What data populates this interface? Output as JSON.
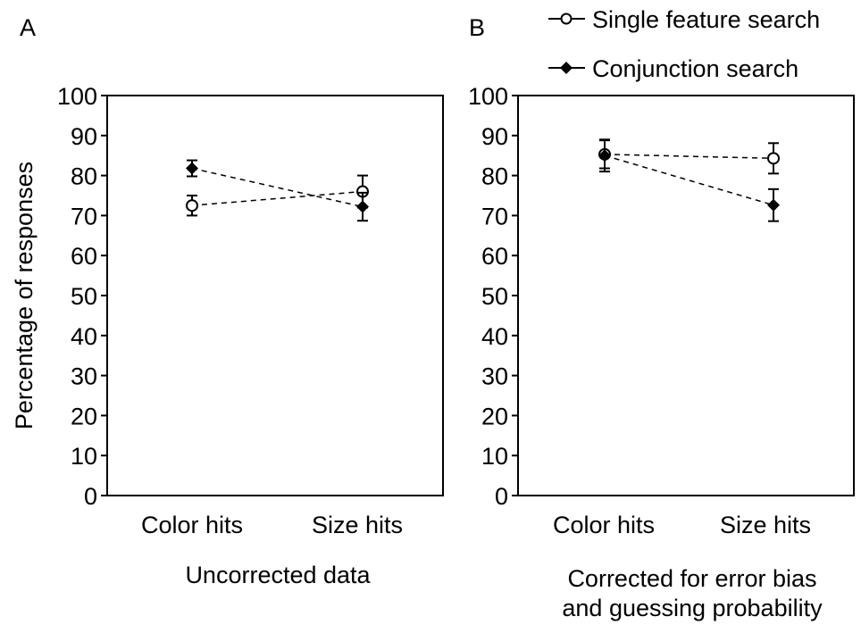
{
  "legend": {
    "items": [
      {
        "label": "Single feature search",
        "marker": "open-circle"
      },
      {
        "label": "Conjunction search",
        "marker": "filled-diamond"
      }
    ]
  },
  "chart_data": [
    {
      "type": "line",
      "panel_label": "A",
      "title": "",
      "xlabel": "Uncorrected data",
      "ylabel": "Percentage of responses",
      "categories": [
        "Color hits",
        "Size hits"
      ],
      "ylim": [
        0,
        100
      ],
      "yticks": [
        0,
        10,
        20,
        30,
        40,
        50,
        60,
        70,
        80,
        90,
        100
      ],
      "grid": false,
      "series": [
        {
          "name": "Single feature search",
          "marker": "open-circle",
          "line": "dashed",
          "values": [
            72.5,
            76.0
          ],
          "error": [
            2.5,
            4.0
          ]
        },
        {
          "name": "Conjunction search",
          "marker": "filled-diamond",
          "line": "dashed",
          "values": [
            81.8,
            72.2
          ],
          "error": [
            2.0,
            3.5
          ]
        }
      ]
    },
    {
      "type": "line",
      "panel_label": "B",
      "title": "",
      "xlabel_lines": [
        "Corrected for error bias",
        "and guessing probability"
      ],
      "ylabel": "",
      "categories": [
        "Color hits",
        "Size hits"
      ],
      "ylim": [
        0,
        100
      ],
      "yticks": [
        0,
        10,
        20,
        30,
        40,
        50,
        60,
        70,
        80,
        90,
        100
      ],
      "grid": false,
      "series": [
        {
          "name": "Single feature search",
          "marker": "open-circle",
          "line": "dashed",
          "values": [
            85.3,
            84.3
          ],
          "error": [
            3.5,
            3.8
          ]
        },
        {
          "name": "Conjunction search",
          "marker": "filled-diamond",
          "line": "dashed",
          "values": [
            85.0,
            72.6
          ],
          "error": [
            4.0,
            4.0
          ]
        }
      ]
    }
  ]
}
